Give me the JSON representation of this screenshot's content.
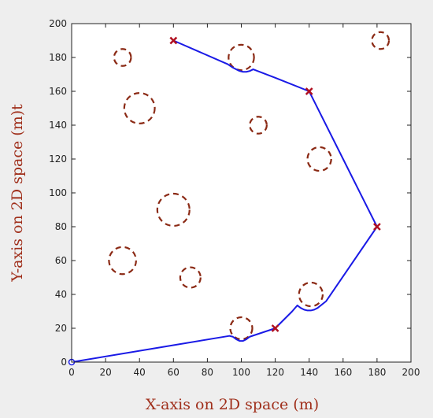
{
  "colors": {
    "figure_background": "#eeeeee",
    "plot_background": "#ffffff",
    "axis_line": "#222222",
    "axis_title": "#a0301c",
    "path": "#1a1ae6",
    "waypoint": "#b01020",
    "start_marker": "#1a1ae6",
    "obstacle": "#8b2a15"
  },
  "chart_data": {
    "type": "line",
    "title": "",
    "xlabel": "X-axis on 2D space (m)",
    "ylabel": "Y-axis on 2D space (m)t",
    "xlim": [
      0,
      200
    ],
    "ylim": [
      0,
      200
    ],
    "xticks": [
      0,
      20,
      40,
      60,
      80,
      100,
      120,
      140,
      160,
      180,
      200
    ],
    "yticks": [
      0,
      20,
      40,
      60,
      80,
      100,
      120,
      140,
      160,
      180,
      200
    ],
    "grid": false,
    "start": {
      "x": 0,
      "y": 0,
      "marker": "circle"
    },
    "waypoints": [
      {
        "x": 120,
        "y": 20
      },
      {
        "x": 180,
        "y": 80
      },
      {
        "x": 140,
        "y": 160
      },
      {
        "x": 60,
        "y": 190
      }
    ],
    "path": {
      "x": [
        0,
        60,
        93,
        95,
        97,
        99,
        101,
        103,
        105,
        120,
        120,
        130,
        133,
        135,
        137,
        139,
        141,
        143,
        145,
        150,
        180,
        180,
        160,
        140,
        140,
        120,
        107,
        105,
        103,
        101,
        99,
        97,
        95,
        92,
        60
      ],
      "y": [
        0,
        10,
        15.5,
        15,
        13.5,
        12.5,
        12.5,
        13.5,
        15,
        20,
        20,
        30,
        33.5,
        32,
        31,
        30.5,
        30.5,
        31,
        32,
        36,
        80,
        80,
        120,
        160,
        160,
        168,
        173,
        172,
        171.5,
        171.5,
        172,
        173,
        174,
        176,
        190
      ]
    },
    "obstacles": [
      {
        "x": 30,
        "y": 180,
        "r": 5
      },
      {
        "x": 100,
        "y": 180,
        "r": 7.5
      },
      {
        "x": 182,
        "y": 190,
        "r": 5
      },
      {
        "x": 40,
        "y": 150,
        "r": 9
      },
      {
        "x": 110,
        "y": 140,
        "r": 5
      },
      {
        "x": 146,
        "y": 120,
        "r": 7
      },
      {
        "x": 60,
        "y": 90,
        "r": 9.5
      },
      {
        "x": 30,
        "y": 60,
        "r": 8
      },
      {
        "x": 70,
        "y": 50,
        "r": 6
      },
      {
        "x": 141,
        "y": 40,
        "r": 7
      },
      {
        "x": 100,
        "y": 20,
        "r": 6.5
      }
    ]
  }
}
